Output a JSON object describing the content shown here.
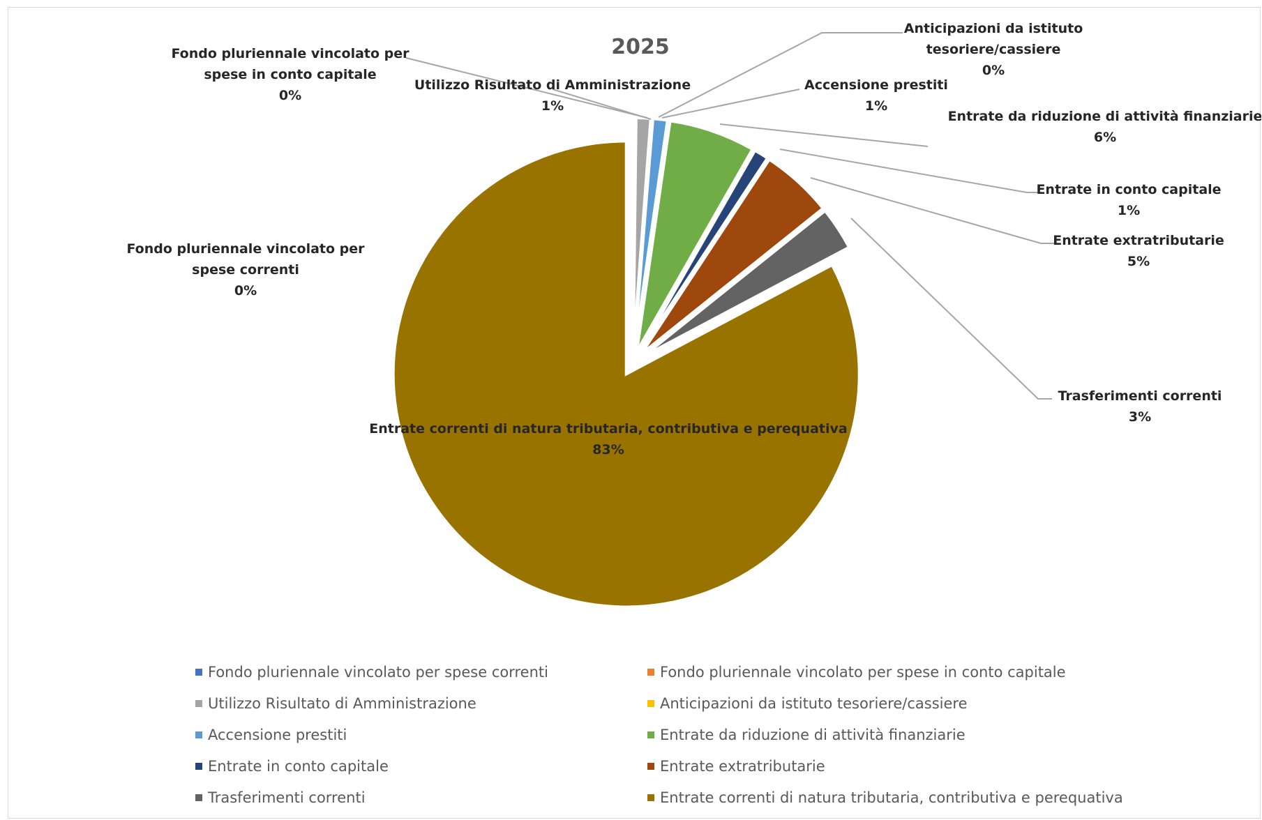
{
  "chart_data": {
    "type": "pie",
    "title": "2025",
    "exploded": true,
    "legend_position": "bottom",
    "slices": [
      {
        "name": "Fondo pluriennale vincolato per spese correnti",
        "value": 0,
        "label": "0%",
        "color": "#4472c4"
      },
      {
        "name": "Fondo pluriennale vincolato per spese in conto capitale",
        "value": 0,
        "label": "0%",
        "color": "#ed7d31"
      },
      {
        "name": "Utilizzo Risultato di Amministrazione",
        "value": 1,
        "label": "1%",
        "color": "#a5a5a5"
      },
      {
        "name": "Anticipazioni da istituto tesoriere/cassiere",
        "value": 0,
        "label": "0%",
        "color": "#ffc000"
      },
      {
        "name": "Accensione prestiti",
        "value": 1,
        "label": "1%",
        "color": "#5b9bd5"
      },
      {
        "name": "Entrate da riduzione di attività finanziarie",
        "value": 6,
        "label": "6%",
        "color": "#70ad47"
      },
      {
        "name": "Entrate in conto capitale",
        "value": 1,
        "label": "1%",
        "color": "#264478"
      },
      {
        "name": "Entrate extratributarie",
        "value": 5,
        "label": "5%",
        "color": "#9e480e"
      },
      {
        "name": "Trasferimenti correnti",
        "value": 3,
        "label": "3%",
        "color": "#636363"
      },
      {
        "name": "Entrate correnti di natura tributaria, contributiva e perequativa",
        "value": 83,
        "label": "83%",
        "color": "#997300"
      }
    ],
    "data_labels": [
      {
        "lines": [
          "Fondo pluriennale vincolato per",
          "spese correnti"
        ],
        "pct": "0%"
      },
      {
        "lines": [
          "Fondo pluriennale vincolato per",
          "spese in conto capitale"
        ],
        "pct": "0%"
      },
      {
        "lines": [
          "Utilizzo Risultato di Amministrazione"
        ],
        "pct": "1%"
      },
      {
        "lines": [
          "Anticipazioni da istituto",
          "tesoriere/cassiere"
        ],
        "pct": "0%"
      },
      {
        "lines": [
          "Accensione prestiti"
        ],
        "pct": "1%"
      },
      {
        "lines": [
          "Entrate da riduzione di attività finanziarie"
        ],
        "pct": "6%"
      },
      {
        "lines": [
          "Entrate in conto capitale"
        ],
        "pct": "1%"
      },
      {
        "lines": [
          "Entrate extratributarie"
        ],
        "pct": "5%"
      },
      {
        "lines": [
          "Trasferimenti correnti"
        ],
        "pct": "3%"
      },
      {
        "lines": [
          "Entrate correnti di natura tributaria, contributiva e perequativa"
        ],
        "pct": "83%"
      }
    ],
    "legend": [
      "Fondo pluriennale vincolato per spese correnti",
      "Fondo pluriennale vincolato per spese in conto capitale",
      "Utilizzo Risultato di Amministrazione",
      "Anticipazioni da istituto tesoriere/cassiere",
      "Accensione prestiti",
      "Entrate da riduzione di attività finanziarie",
      "Entrate in conto capitale",
      "Entrate extratributarie",
      "Trasferimenti correnti",
      "Entrate correnti di natura tributaria, contributiva e perequativa"
    ]
  }
}
